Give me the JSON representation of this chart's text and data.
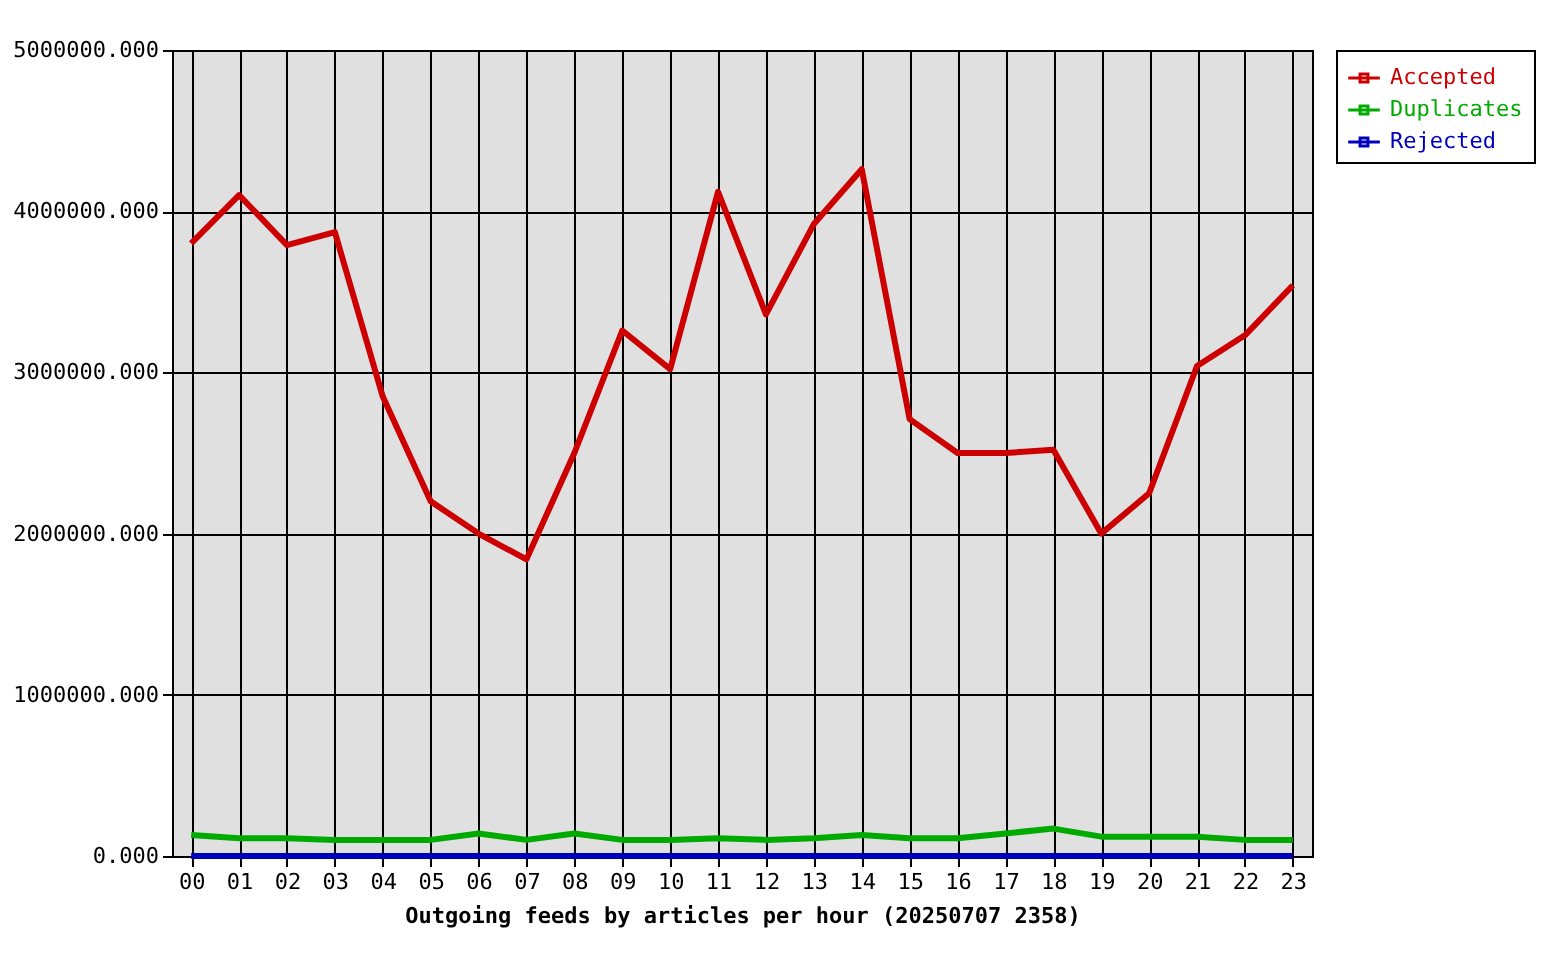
{
  "chart_data": {
    "type": "line",
    "xlabel": "Outgoing feeds by articles per hour (20250707 2358)",
    "categories": [
      "00",
      "01",
      "02",
      "03",
      "04",
      "05",
      "06",
      "07",
      "08",
      "09",
      "10",
      "11",
      "12",
      "13",
      "14",
      "15",
      "16",
      "17",
      "18",
      "19",
      "20",
      "21",
      "22",
      "23"
    ],
    "series": [
      {
        "name": "Accepted",
        "color": "#cc0000",
        "values": [
          3800000,
          4100000,
          3790000,
          3870000,
          2850000,
          2200000,
          2000000,
          1840000,
          2500000,
          3260000,
          3020000,
          4120000,
          3360000,
          3920000,
          4260000,
          2710000,
          2500000,
          2500000,
          2520000,
          2000000,
          2250000,
          3040000,
          3230000,
          3540000
        ]
      },
      {
        "name": "Duplicates",
        "color": "#00aa00",
        "values": [
          130000,
          110000,
          110000,
          100000,
          100000,
          100000,
          140000,
          100000,
          140000,
          100000,
          100000,
          110000,
          100000,
          110000,
          130000,
          110000,
          110000,
          140000,
          170000,
          120000,
          120000,
          120000,
          100000,
          100000
        ]
      },
      {
        "name": "Rejected",
        "color": "#0000bb",
        "values": [
          0,
          0,
          0,
          0,
          0,
          0,
          0,
          0,
          0,
          0,
          0,
          0,
          0,
          0,
          0,
          0,
          0,
          0,
          0,
          0,
          0,
          0,
          0,
          0
        ]
      }
    ],
    "ylim": [
      0,
      5000000
    ],
    "yticks": [
      {
        "value": 0,
        "label": "0.000"
      },
      {
        "value": 1000000,
        "label": "1000000.000"
      },
      {
        "value": 2000000,
        "label": "2000000.000"
      },
      {
        "value": 3000000,
        "label": "3000000.000"
      },
      {
        "value": 4000000,
        "label": "4000000.000"
      },
      {
        "value": 5000000,
        "label": "5000000.000"
      }
    ],
    "grid": true,
    "legend": "top right",
    "marker": "none",
    "line_style": "solid"
  }
}
